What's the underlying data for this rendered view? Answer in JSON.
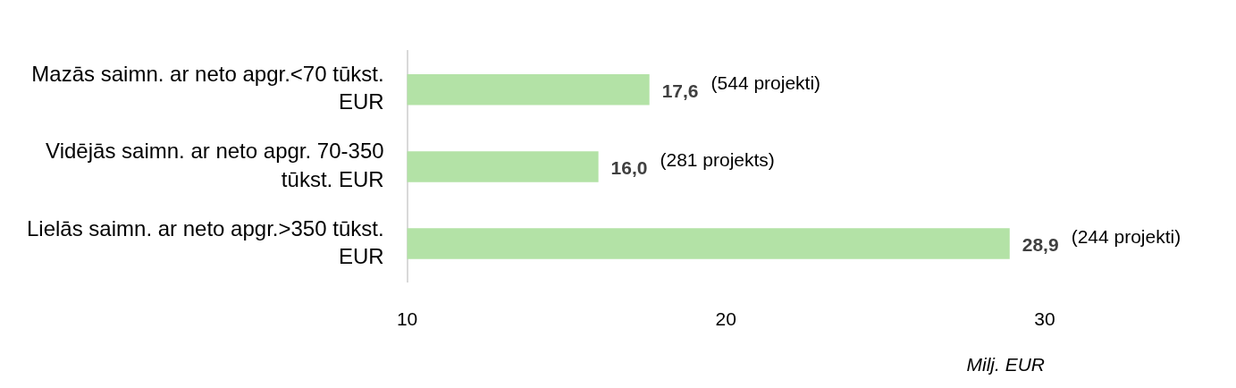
{
  "chart_data": {
    "type": "bar",
    "orientation": "horizontal",
    "categories": [
      "Mazās saimn. ar neto apgr.<70 tūkst. EUR",
      "Vidējās saimn. ar neto apgr. 70-350 tūkst. EUR",
      "Lielās saimn. ar neto apgr.>350 tūkst. EUR"
    ],
    "values": [
      17.6,
      16.0,
      28.9
    ],
    "color": "#b3e2a6",
    "value_labels": [
      "17,6",
      "16,0",
      "28,9"
    ],
    "xlim": [
      10,
      30
    ],
    "xticks": [
      10,
      20,
      30
    ],
    "grid": false,
    "legend": false,
    "xlabel": "Milj. EUR",
    "annotations": [
      "(544 projekti)",
      "(281 projekts)",
      "(244 projekti)"
    ]
  }
}
